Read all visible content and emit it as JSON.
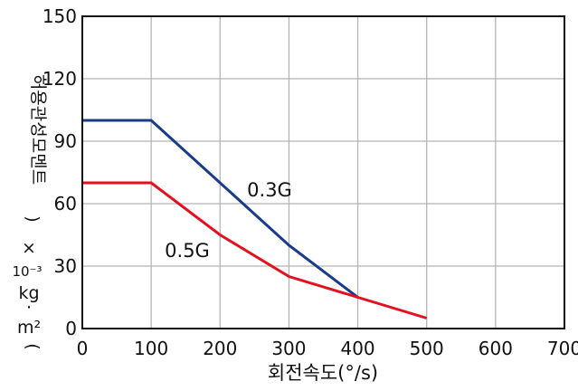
{
  "chart_data": {
    "type": "line",
    "title": "",
    "xlabel": "회전속도(°/s)",
    "ylabel": "허용관성모멘트 (×10⁻³ kg·m²)",
    "ylabel_parts": {
      "korean": "허용관성모멘트",
      "open_paren": "(",
      "times": "×",
      "close_paren": ")",
      "power": "10⁻³",
      "kg": "kg",
      "dot": "·",
      "m2": "m²"
    },
    "xlim": [
      0,
      700
    ],
    "ylim": [
      0,
      150
    ],
    "x_ticks": [
      "0",
      "100",
      "200",
      "300",
      "400",
      "500",
      "600",
      "700"
    ],
    "y_ticks": [
      "0",
      "30",
      "60",
      "90",
      "120",
      "150"
    ],
    "grid": true,
    "series": [
      {
        "name": "0.3G",
        "color": "#1a3a8c",
        "x": [
          0,
          100,
          200,
          300,
          400
        ],
        "y": [
          100,
          100,
          70,
          40,
          15
        ]
      },
      {
        "name": "0.5G",
        "color": "#e3101f",
        "x": [
          0,
          100,
          200,
          300,
          400,
          500
        ],
        "y": [
          70,
          70,
          45,
          25,
          15,
          5
        ]
      }
    ]
  }
}
